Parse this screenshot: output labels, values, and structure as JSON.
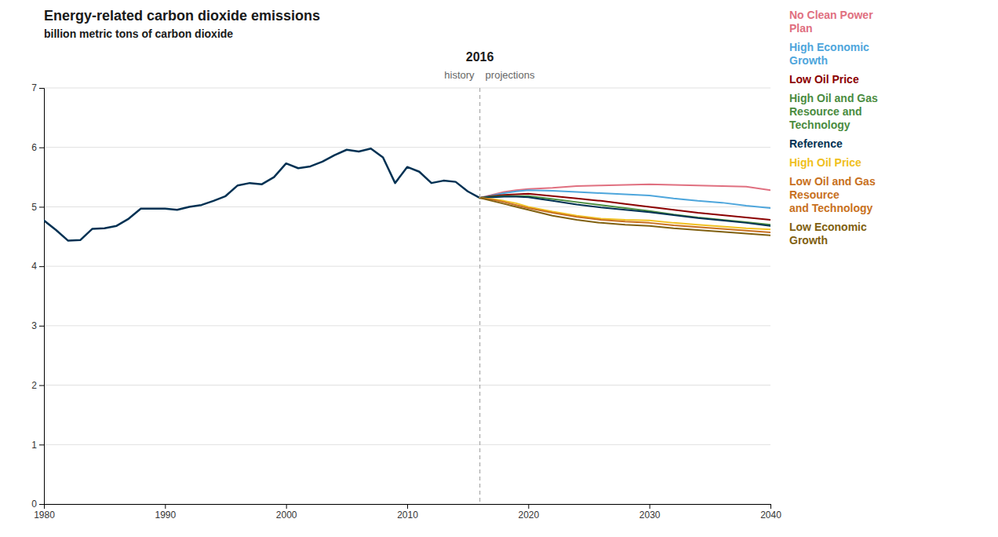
{
  "chart_data": {
    "type": "line",
    "title": "Energy-related carbon dioxide emissions",
    "subtitle": "billion metric tons of carbon dioxide",
    "split_year": 2016,
    "history_label": "history",
    "projections_label": "projections",
    "xlim": [
      1980,
      2040
    ],
    "ylim": [
      0,
      7
    ],
    "xticks": [
      1980,
      1990,
      2000,
      2010,
      2020,
      2030,
      2040
    ],
    "yticks": [
      0,
      1,
      2,
      3,
      4,
      5,
      6,
      7
    ],
    "grid": true,
    "legend": "right",
    "series": [
      {
        "color": "#003153",
        "x": [
          1980,
          1981,
          1982,
          1983,
          1984,
          1985,
          1986,
          1987,
          1988,
          1989,
          1990,
          1991,
          1992,
          1993,
          1994,
          1995,
          1996,
          1997,
          1998,
          1999,
          2000,
          2001,
          2002,
          2003,
          2004,
          2005,
          2006,
          2007,
          2008,
          2009,
          2010,
          2011,
          2012,
          2013,
          2014,
          2015,
          2016
        ],
        "values": [
          4.77,
          4.61,
          4.43,
          4.44,
          4.63,
          4.64,
          4.68,
          4.8,
          4.97,
          4.97,
          4.97,
          4.95,
          5.0,
          5.03,
          5.1,
          5.18,
          5.36,
          5.4,
          5.38,
          5.5,
          5.73,
          5.65,
          5.68,
          5.76,
          5.87,
          5.96,
          5.93,
          5.98,
          5.83,
          5.4,
          5.67,
          5.59,
          5.4,
          5.44,
          5.42,
          5.26,
          5.15
        ]
      },
      {
        "name": [
          "No Clean Power",
          "Plan"
        ],
        "color": "#e07080",
        "x": [
          2016,
          2017,
          2018,
          2019,
          2020,
          2022,
          2024,
          2026,
          2028,
          2030,
          2032,
          2034,
          2036,
          2038,
          2040
        ],
        "values": [
          5.15,
          5.2,
          5.25,
          5.28,
          5.3,
          5.32,
          5.35,
          5.36,
          5.37,
          5.38,
          5.37,
          5.36,
          5.35,
          5.34,
          5.28
        ]
      },
      {
        "name": [
          "High Economic",
          "Growth"
        ],
        "color": "#4ea6dc",
        "x": [
          2016,
          2017,
          2018,
          2019,
          2020,
          2022,
          2024,
          2026,
          2028,
          2030,
          2032,
          2034,
          2036,
          2038,
          2040
        ],
        "values": [
          5.15,
          5.19,
          5.23,
          5.26,
          5.28,
          5.27,
          5.25,
          5.23,
          5.21,
          5.19,
          5.14,
          5.1,
          5.07,
          5.02,
          4.98
        ]
      },
      {
        "name": [
          "Low Oil Price"
        ],
        "color": "#8b0000",
        "x": [
          2016,
          2017,
          2018,
          2019,
          2020,
          2022,
          2024,
          2026,
          2028,
          2030,
          2032,
          2034,
          2036,
          2038,
          2040
        ],
        "values": [
          5.15,
          5.18,
          5.2,
          5.21,
          5.22,
          5.18,
          5.14,
          5.1,
          5.05,
          5.0,
          4.95,
          4.9,
          4.86,
          4.82,
          4.78
        ]
      },
      {
        "name": [
          "High Oil and Gas",
          "Resource and",
          "Technology"
        ],
        "color": "#4a8c3f",
        "x": [
          2016,
          2017,
          2018,
          2019,
          2020,
          2022,
          2024,
          2026,
          2028,
          2030,
          2032,
          2034,
          2036,
          2038,
          2040
        ],
        "values": [
          5.15,
          5.17,
          5.18,
          5.18,
          5.18,
          5.13,
          5.08,
          5.03,
          4.98,
          4.93,
          4.87,
          4.82,
          4.78,
          4.74,
          4.7
        ]
      },
      {
        "name": [
          "Reference"
        ],
        "color": "#003153",
        "x": [
          2016,
          2017,
          2018,
          2019,
          2020,
          2022,
          2024,
          2026,
          2028,
          2030,
          2032,
          2034,
          2036,
          2038,
          2040
        ],
        "values": [
          5.15,
          5.16,
          5.17,
          5.17,
          5.16,
          5.1,
          5.04,
          4.99,
          4.95,
          4.91,
          4.86,
          4.81,
          4.77,
          4.73,
          4.68
        ]
      },
      {
        "name": [
          "High Oil Price"
        ],
        "color": "#f0c020",
        "x": [
          2016,
          2017,
          2018,
          2019,
          2020,
          2022,
          2024,
          2026,
          2028,
          2030,
          2032,
          2034,
          2036,
          2038,
          2040
        ],
        "values": [
          5.15,
          5.13,
          5.1,
          5.06,
          5.0,
          4.92,
          4.85,
          4.8,
          4.78,
          4.77,
          4.73,
          4.7,
          4.67,
          4.64,
          4.62
        ]
      },
      {
        "name": [
          "Low Oil and Gas",
          "Resource",
          "and Technology"
        ],
        "color": "#c87020",
        "x": [
          2016,
          2017,
          2018,
          2019,
          2020,
          2022,
          2024,
          2026,
          2028,
          2030,
          2032,
          2034,
          2036,
          2038,
          2040
        ],
        "values": [
          5.15,
          5.12,
          5.08,
          5.03,
          4.98,
          4.9,
          4.83,
          4.78,
          4.75,
          4.73,
          4.69,
          4.66,
          4.63,
          4.6,
          4.57
        ]
      },
      {
        "name": [
          "Low Economic",
          "Growth"
        ],
        "color": "#806010",
        "x": [
          2016,
          2017,
          2018,
          2019,
          2020,
          2022,
          2024,
          2026,
          2028,
          2030,
          2032,
          2034,
          2036,
          2038,
          2040
        ],
        "values": [
          5.15,
          5.1,
          5.05,
          5.0,
          4.95,
          4.85,
          4.78,
          4.73,
          4.7,
          4.68,
          4.64,
          4.61,
          4.58,
          4.55,
          4.52
        ]
      }
    ]
  }
}
